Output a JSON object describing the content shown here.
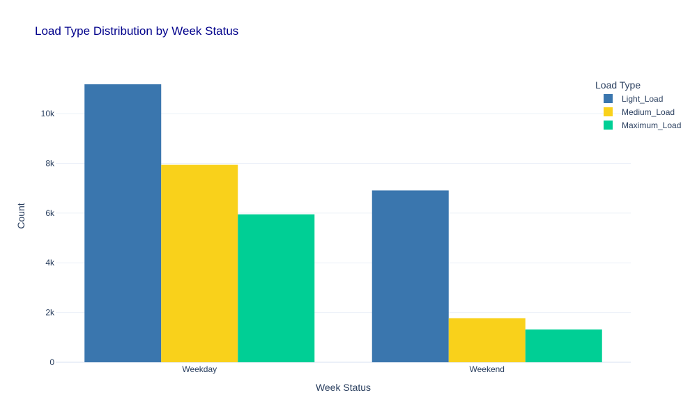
{
  "chart_data": {
    "type": "bar",
    "title": "Load Type Distribution by Week Status",
    "xlabel": "Week Status",
    "ylabel": "Count",
    "categories": [
      "Weekday",
      "Weekend"
    ],
    "series": [
      {
        "name": "Light_Load",
        "color": "#3a76ae",
        "values": [
          11180,
          6910
        ]
      },
      {
        "name": "Medium_Load",
        "color": "#f9d11b",
        "values": [
          7940,
          1770
        ]
      },
      {
        "name": "Maximum_Load",
        "color": "#00cf95",
        "values": [
          5950,
          1320
        ]
      }
    ],
    "ylim": [
      0,
      11768
    ],
    "yticks": [
      0,
      2000,
      4000,
      6000,
      8000,
      10000
    ],
    "ytick_labels": [
      "0",
      "2k",
      "4k",
      "6k",
      "8k",
      "10k"
    ],
    "legend_title": "Load Type",
    "legend_position": "top-right",
    "grid": true
  }
}
